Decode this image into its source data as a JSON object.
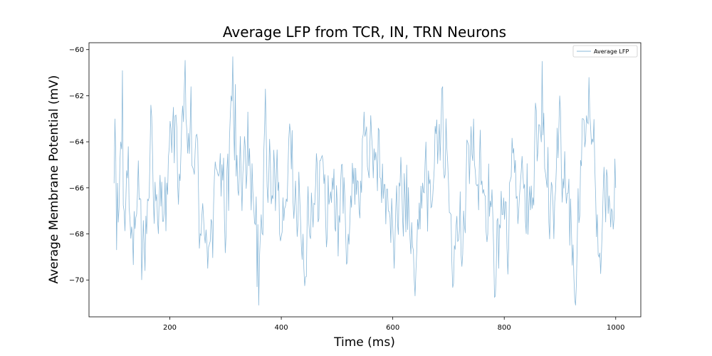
{
  "chart_data": {
    "type": "line",
    "title": "Average LFP from TCR, IN, TRN Neurons",
    "xlabel": "Time (ms)",
    "ylabel": "Average Membrane Potential (mV)",
    "xlim": [
      55,
      1045
    ],
    "ylim": [
      -71.6,
      -59.7
    ],
    "x_ticks": [
      200,
      400,
      600,
      800,
      1000
    ],
    "y_ticks": [
      -70,
      -68,
      -66,
      -64,
      -62,
      -60
    ],
    "grid": false,
    "legend": {
      "position": "top-right",
      "entries": [
        "Average LFP"
      ]
    },
    "series": [
      {
        "name": "Average LFP",
        "color": "#8ab8d8",
        "x_start": 100,
        "x_end": 1000,
        "x_step": 1.5,
        "mean": -66.5,
        "min": -71.1,
        "max": -60.3,
        "key_points": [
          [
            100,
            -65.8
          ],
          [
            101,
            -63.0
          ],
          [
            103,
            -64.5
          ],
          [
            105,
            -68.7
          ],
          [
            108,
            -67.5
          ],
          [
            112,
            -64.0
          ],
          [
            115,
            -60.9
          ],
          [
            118,
            -67.0
          ],
          [
            126,
            -64.2
          ],
          [
            130,
            -68.2
          ],
          [
            150,
            -70.0
          ],
          [
            160,
            -66.5
          ],
          [
            166,
            -62.4
          ],
          [
            180,
            -68.0
          ],
          [
            190,
            -67.0
          ],
          [
            200,
            -63.1
          ],
          [
            238,
            -61.6
          ],
          [
            255,
            -68.0
          ],
          [
            268,
            -69.5
          ],
          [
            290,
            -64.5
          ],
          [
            305,
            -67.0
          ],
          [
            310,
            -62.0
          ],
          [
            313,
            -60.3
          ],
          [
            318,
            -61.5
          ],
          [
            330,
            -67.0
          ],
          [
            340,
            -62.7
          ],
          [
            357,
            -70.3
          ],
          [
            359,
            -71.1
          ],
          [
            363,
            -68.0
          ],
          [
            372,
            -61.7
          ],
          [
            390,
            -67.0
          ],
          [
            420,
            -63.5
          ],
          [
            440,
            -69.5
          ],
          [
            465,
            -65.0
          ],
          [
            520,
            -68.0
          ],
          [
            548,
            -62.7
          ],
          [
            575,
            -63.5
          ],
          [
            603,
            -69.5
          ],
          [
            625,
            -65.0
          ],
          [
            640,
            -70.7
          ],
          [
            660,
            -64.0
          ],
          [
            689,
            -61.6
          ],
          [
            710,
            -68.5
          ],
          [
            745,
            -63.0
          ],
          [
            770,
            -68.0
          ],
          [
            790,
            -69.5
          ],
          [
            815,
            -64.5
          ],
          [
            840,
            -68.0
          ],
          [
            868,
            -60.5
          ],
          [
            880,
            -67.5
          ],
          [
            900,
            -62.0
          ],
          [
            918,
            -68.5
          ],
          [
            930,
            -70.1
          ],
          [
            942,
            -63.0
          ],
          [
            952,
            -61.2
          ],
          [
            970,
            -69.0
          ],
          [
            985,
            -65.5
          ],
          [
            995,
            -67.8
          ],
          [
            1000,
            -66.0
          ]
        ]
      }
    ]
  }
}
